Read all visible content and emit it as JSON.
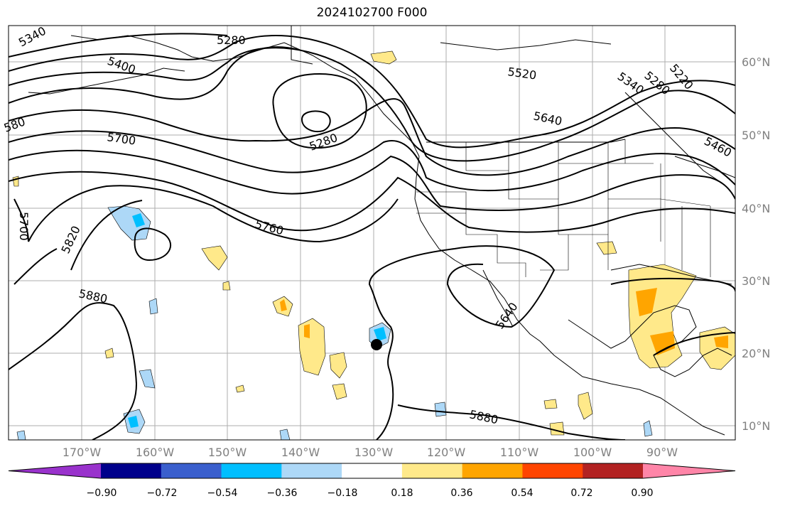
{
  "title": "2024102700 F000",
  "map": {
    "lon_labels": [
      "170°W",
      "160°W",
      "150°W",
      "140°W",
      "130°W",
      "120°W",
      "110°W",
      "100°W",
      "90°W"
    ],
    "lat_labels": [
      "60°N",
      "50°N",
      "40°N",
      "30°N",
      "20°N",
      "10°N"
    ],
    "contour_labels": [
      "5340",
      "5280",
      "5400",
      "5520",
      "5340",
      "5280",
      "5220",
      "5640",
      "5460",
      "580",
      "5700",
      "5280",
      "5700",
      "5820",
      "5760",
      "5880",
      "5640",
      "5880"
    ],
    "colorbar": {
      "ticks": [
        "−0.90",
        "−0.72",
        "−0.54",
        "−0.36",
        "−0.18",
        "0.18",
        "0.36",
        "0.54",
        "0.72",
        "0.90"
      ],
      "colors": [
        "#9932cc",
        "#00008b",
        "#3a5fcd",
        "#00bfff",
        "#add8f7",
        "#ffffff",
        "#ffe98a",
        "#ffa500",
        "#ff4500",
        "#b22222",
        "#ff85a8"
      ]
    },
    "line_color": "#000000",
    "grid_color": "#999999"
  }
}
